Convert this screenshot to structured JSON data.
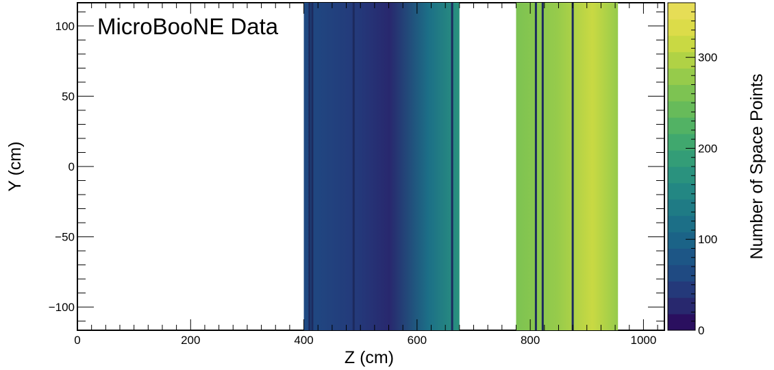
{
  "chart_data": {
    "type": "heatmap",
    "annotation": "MicroBooNE Data",
    "xlabel": "Z (cm)",
    "ylabel": "Y (cm)",
    "colorbar_label": "Number of Space Points",
    "xlim": [
      0,
      1037
    ],
    "ylim": [
      -116.5,
      116.5
    ],
    "zlim": [
      0,
      360
    ],
    "x_ticks": [
      0,
      200,
      400,
      600,
      800,
      1000
    ],
    "x_tick_labels": [
      "0",
      "200",
      "400",
      "600",
      "800",
      "1000"
    ],
    "y_ticks": [
      -100,
      -50,
      0,
      50,
      100
    ],
    "y_tick_labels": [
      "−100",
      "−50",
      "0",
      "50",
      "100"
    ],
    "z_ticks": [
      0,
      100,
      200,
      300
    ],
    "z_tick_labels": [
      "0",
      "100",
      "200",
      "300"
    ],
    "palette": [
      "#2a0f5f",
      "#28286e",
      "#24397a",
      "#1f4a82",
      "#1d5686",
      "#1b6387",
      "#1c6f87",
      "#1f7b85",
      "#238783",
      "#2a927e",
      "#339d77",
      "#40a86e",
      "#52b264",
      "#67bb5a",
      "#7dc352",
      "#96cb4b",
      "#b0d245",
      "#c9d943",
      "#dcdc49",
      "#e6dd56"
    ],
    "regions": [
      {
        "z": [
          400,
          675
        ],
        "y": [
          -116.5,
          116.5
        ],
        "level": 40
      },
      {
        "z": [
          775,
          955
        ],
        "y": [
          -116.5,
          116.5
        ],
        "level": 260
      }
    ],
    "dead_wire_lines_z": [
      410,
      415,
      488,
      662,
      810,
      822,
      875
    ]
  }
}
